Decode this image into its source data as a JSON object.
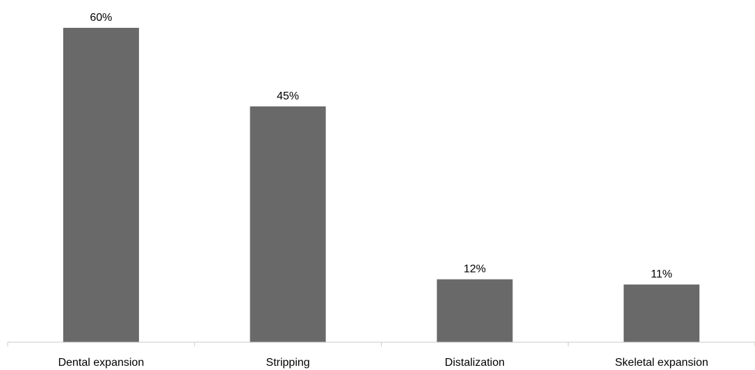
{
  "chart_data": {
    "type": "bar",
    "categories": [
      "Dental expansion",
      "Stripping",
      "Distalization",
      "Skeletal expansion"
    ],
    "values": [
      60,
      45,
      12,
      11
    ],
    "value_labels": [
      "60%",
      "45%",
      "12%",
      "11%"
    ],
    "title": "",
    "xlabel": "",
    "ylabel": "",
    "ylim": [
      0,
      65
    ],
    "grid": false,
    "legend": "none",
    "bar_color": "#696969",
    "axis_color": "#c8c8c8"
  }
}
